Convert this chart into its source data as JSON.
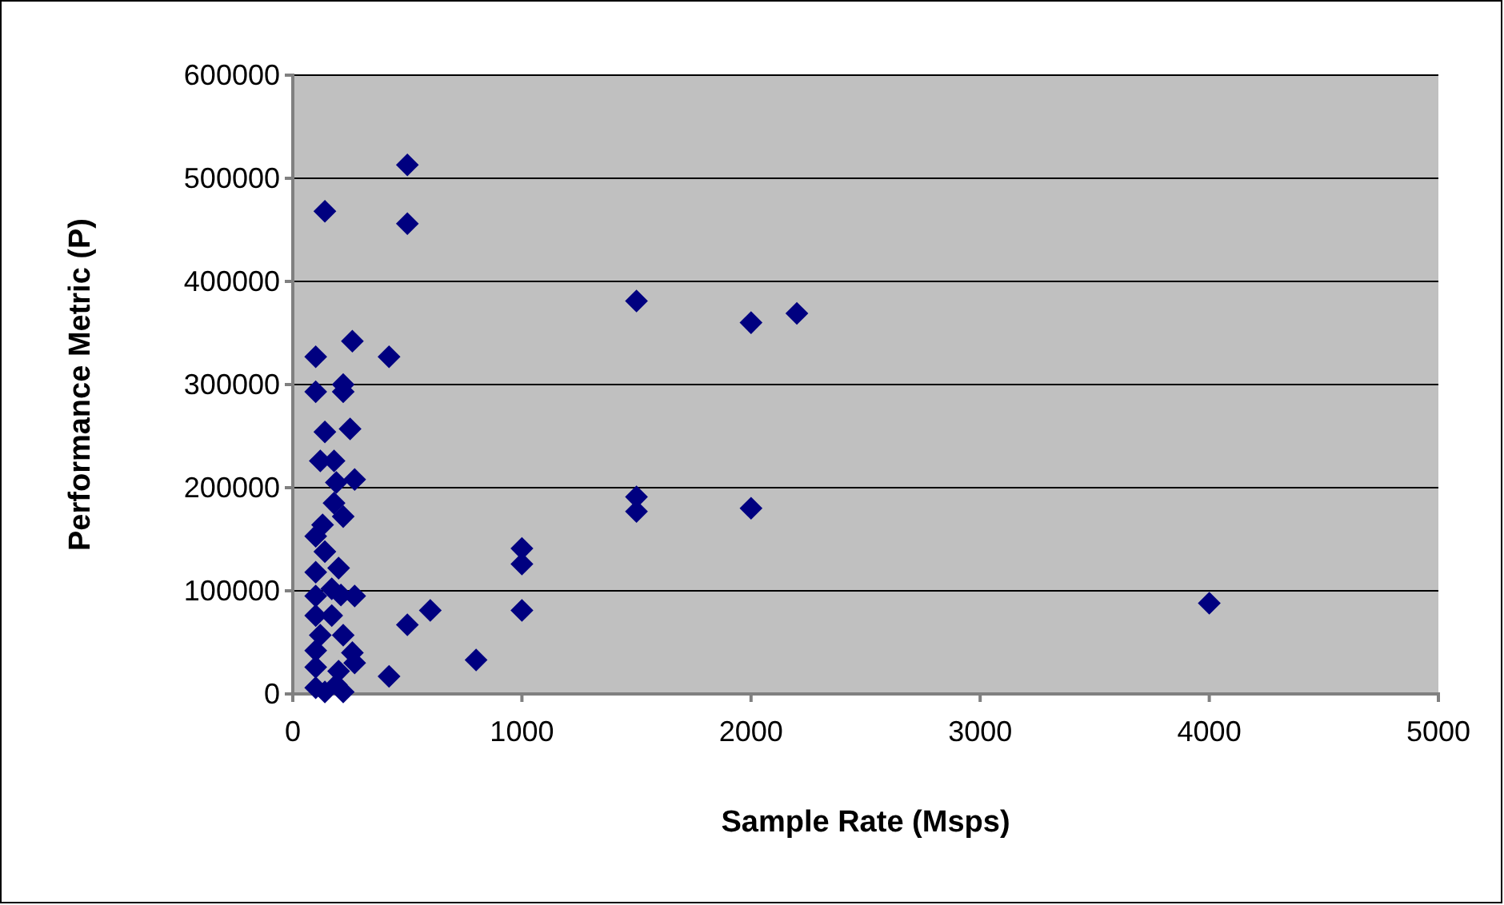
{
  "chart_data": {
    "type": "scatter",
    "xlabel": "Sample Rate (Msps)",
    "ylabel": "Performance Metric (P)",
    "xlim": [
      0,
      5000
    ],
    "xticks": [
      0,
      1000,
      2000,
      3000,
      4000,
      5000
    ],
    "ylim": [
      0,
      600000
    ],
    "yticks": [
      0,
      100000,
      200000,
      300000,
      400000,
      500000,
      600000
    ],
    "grid": "y",
    "marker": "diamond",
    "series": [
      {
        "color": "#000080",
        "x": [
          500,
          140,
          500,
          1500,
          2000,
          2200,
          260,
          420,
          100,
          220,
          220,
          100,
          140,
          250,
          120,
          180,
          190,
          270,
          180,
          220,
          130,
          100,
          140,
          200,
          100,
          170,
          270,
          210,
          100,
          100,
          170,
          600,
          500,
          120,
          220,
          100,
          260,
          270,
          100,
          200,
          420,
          190,
          140,
          220,
          100,
          1500,
          1500,
          2000,
          1000,
          1000,
          1000,
          800,
          4000
        ],
        "values": [
          513000,
          468000,
          456000,
          381000,
          360000,
          369000,
          342000,
          327000,
          327000,
          300000,
          293000,
          293000,
          254000,
          257000,
          226000,
          226000,
          205000,
          208000,
          185000,
          172000,
          164000,
          153000,
          138000,
          122000,
          118000,
          102000,
          95000,
          96000,
          95000,
          76000,
          76000,
          81000,
          67000,
          57000,
          57000,
          42000,
          40000,
          30000,
          26000,
          22000,
          17000,
          9000,
          2000,
          2000,
          6000,
          191000,
          177000,
          180000,
          141000,
          126000,
          81000,
          33000,
          88000
        ]
      }
    ]
  }
}
